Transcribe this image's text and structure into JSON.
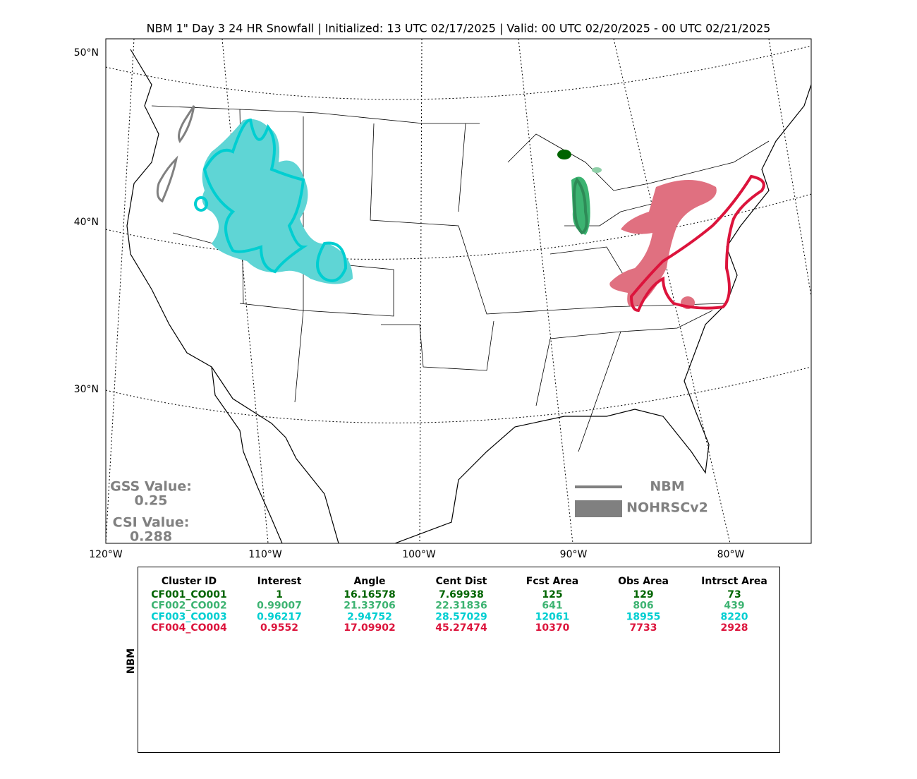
{
  "title": "NBM 1\" Day 3 24 HR Snowfall | Initialized: 13 UTC 02/17/2025 | Valid: 00 UTC 02/20/2025 - 00 UTC 02/21/2025",
  "lat_labels": [
    "50°N",
    "40°N",
    "30°N"
  ],
  "lon_labels": [
    "120°W",
    "110°W",
    "100°W",
    "90°W",
    "80°W"
  ],
  "gss": {
    "label": "GSS Value:",
    "value": "0.25"
  },
  "csi": {
    "label": "CSI Value:",
    "value": "0.288"
  },
  "legend": {
    "line": "NBM",
    "fill": "NOHRSCv2"
  },
  "table": {
    "side_label": "NBM",
    "columns": [
      "Cluster ID",
      "Interest",
      "Angle",
      "Cent Dist",
      "Fcst Area",
      "Obs Area",
      "Intrsct Area"
    ],
    "rows": [
      {
        "color": "#006400",
        "cells": [
          "CF001_CO001",
          "1",
          "16.16578",
          "7.69938",
          "125",
          "129",
          "73"
        ]
      },
      {
        "color": "#3cb371",
        "cells": [
          "CF002_CO002",
          "0.99007",
          "21.33706",
          "22.31836",
          "641",
          "806",
          "439"
        ]
      },
      {
        "color": "#00ced1",
        "cells": [
          "CF003_CO003",
          "0.96217",
          "2.94752",
          "28.57029",
          "12061",
          "18955",
          "8220"
        ]
      },
      {
        "color": "#dc143c",
        "cells": [
          "CF004_CO004",
          "0.9552",
          "17.09902",
          "45.27474",
          "10370",
          "7733",
          "2928"
        ]
      }
    ]
  }
}
